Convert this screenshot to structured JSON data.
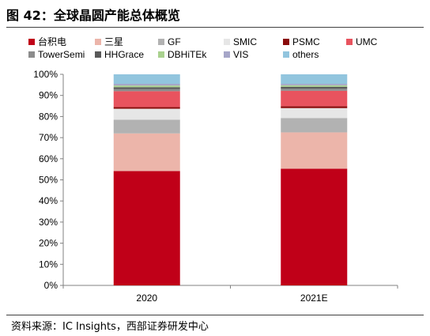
{
  "figure_title": "图 42：全球晶圆产能总体概览",
  "source": "资料来源：IC Insights，西部证券研发中心",
  "chart_data": {
    "type": "bar",
    "stacked": true,
    "categories": [
      "2020",
      "2021E"
    ],
    "ylim": [
      0,
      100
    ],
    "yticks": [
      "0%",
      "10%",
      "20%",
      "30%",
      "40%",
      "50%",
      "60%",
      "70%",
      "80%",
      "90%",
      "100%"
    ],
    "grid": false,
    "legend_position": "top",
    "series": [
      {
        "name": "台积电",
        "color": "#c00018",
        "values": [
          54.2,
          55.3
        ]
      },
      {
        "name": "三星",
        "color": "#ecb5aa",
        "values": [
          17.8,
          17.2
        ]
      },
      {
        "name": "GF",
        "color": "#b2b2b2",
        "values": [
          6.5,
          6.8
        ]
      },
      {
        "name": "SMIC",
        "color": "#e6e6e6",
        "values": [
          5.2,
          4.7
        ]
      },
      {
        "name": "PSMC",
        "color": "#8a0b0b",
        "values": [
          0.8,
          0.9
        ]
      },
      {
        "name": "UMC",
        "color": "#e8535e",
        "values": [
          7.5,
          7.3
        ]
      },
      {
        "name": "TowerSemi",
        "color": "#8c8c8c",
        "values": [
          1.0,
          1.0
        ]
      },
      {
        "name": "HHGrace",
        "color": "#595959",
        "values": [
          0.9,
          0.9
        ]
      },
      {
        "name": "DBHiTEk",
        "color": "#a9d18e",
        "values": [
          0.8,
          0.7
        ]
      },
      {
        "name": "VIS",
        "color": "#a6a6c8",
        "values": [
          0.8,
          0.7
        ]
      },
      {
        "name": "others",
        "color": "#92c5de",
        "values": [
          4.5,
          4.5
        ]
      }
    ]
  }
}
